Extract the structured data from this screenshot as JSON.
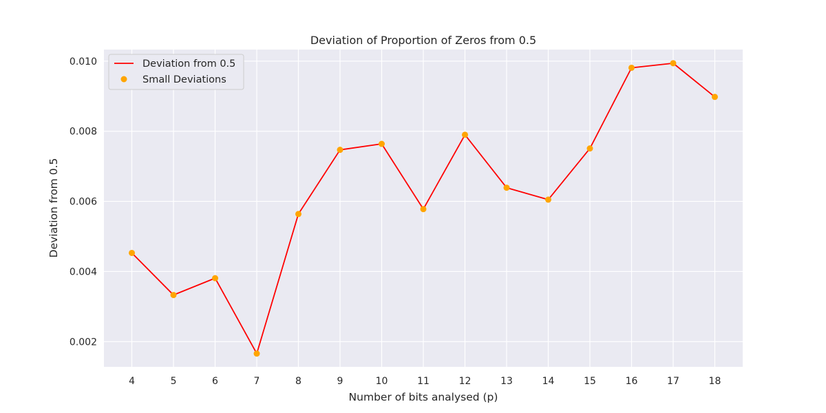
{
  "chart_data": {
    "type": "line",
    "title": "Deviation of Proportion of Zeros from 0.5",
    "xlabel": "Number of bits analysed (p)",
    "ylabel": "Deviation from 0.5",
    "x": [
      4,
      5,
      6,
      7,
      8,
      9,
      10,
      11,
      12,
      13,
      14,
      15,
      16,
      17,
      18
    ],
    "xlim": [
      3.33,
      18.67
    ],
    "ylim": [
      0.00128,
      0.01033
    ],
    "yticks": [
      0.002,
      0.004,
      0.006,
      0.008,
      0.01
    ],
    "ytick_labels": [
      "0.002",
      "0.004",
      "0.006",
      "0.008",
      "0.010"
    ],
    "grid": true,
    "legend_position": "top-left",
    "series": [
      {
        "name": "Deviation from 0.5",
        "kind": "line",
        "color": "#ff0000",
        "values": [
          0.00453,
          0.00333,
          0.00381,
          0.00166,
          0.00564,
          0.00747,
          0.00764,
          0.00578,
          0.0079,
          0.00639,
          0.00605,
          0.00751,
          0.00981,
          0.00994,
          0.00898
        ]
      },
      {
        "name": "Small Deviations",
        "kind": "scatter",
        "color": "#ffa500",
        "values": [
          0.00453,
          0.00333,
          0.00381,
          0.00166,
          0.00564,
          0.00747,
          0.00764,
          0.00578,
          0.0079,
          0.00639,
          0.00605,
          0.00751,
          0.00981,
          0.00994,
          0.00898
        ]
      }
    ],
    "colors": {
      "plot_background": "#eaeaf2",
      "grid": "#ffffff"
    }
  }
}
